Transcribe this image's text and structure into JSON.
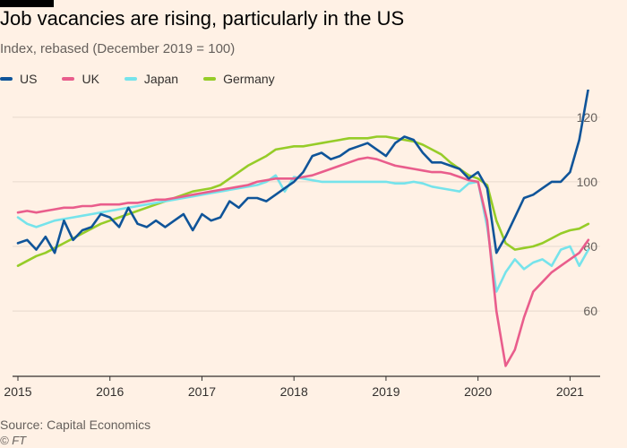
{
  "header": {
    "title": "Job vacancies are rising, particularly in the US",
    "subtitle": "Index, rebased (December 2019 = 100)"
  },
  "footer": {
    "source": "Source: Capital Economics",
    "credit": "© FT"
  },
  "chart_data": {
    "type": "line",
    "title": "Job vacancies are rising, particularly in the US",
    "subtitle": "Index, rebased (December 2019 = 100)",
    "xlabel": "",
    "ylabel": "",
    "x_ticks": [
      "2015",
      "2016",
      "2017",
      "2018",
      "2019",
      "2020",
      "2021"
    ],
    "xlim": [
      2015.0,
      2021.22
    ],
    "y_ticks": [
      "60",
      "80",
      "100",
      "120"
    ],
    "ylim": [
      42,
      128
    ],
    "y_axis_side": "right",
    "grid": "horizontal",
    "legend_position": "top-left",
    "x": [
      2015.0,
      2015.1,
      2015.2,
      2015.3,
      2015.4,
      2015.5,
      2015.6,
      2015.7,
      2015.8,
      2015.9,
      2016.0,
      2016.1,
      2016.2,
      2016.3,
      2016.4,
      2016.5,
      2016.6,
      2016.7,
      2016.8,
      2016.9,
      2017.0,
      2017.1,
      2017.2,
      2017.3,
      2017.4,
      2017.5,
      2017.6,
      2017.7,
      2017.8,
      2017.9,
      2018.0,
      2018.1,
      2018.2,
      2018.3,
      2018.4,
      2018.5,
      2018.6,
      2018.7,
      2018.8,
      2018.9,
      2019.0,
      2019.1,
      2019.2,
      2019.3,
      2019.4,
      2019.5,
      2019.6,
      2019.7,
      2019.8,
      2019.9,
      2020.0,
      2020.1,
      2020.2,
      2020.3,
      2020.4,
      2020.5,
      2020.6,
      2020.7,
      2020.8,
      2020.9,
      2021.0,
      2021.1,
      2021.2
    ],
    "series": [
      {
        "name": "US",
        "color": "#0f5499",
        "values": [
          81,
          82,
          79,
          83,
          78,
          88,
          82,
          85,
          86,
          90,
          89,
          86,
          92,
          87,
          86,
          88,
          86,
          88,
          90,
          85,
          90,
          88,
          89,
          94,
          92,
          95,
          95,
          94,
          96,
          98,
          100,
          103,
          108,
          109,
          107,
          108,
          110,
          111,
          112,
          110,
          108,
          112,
          114,
          113,
          109,
          106,
          106,
          105,
          104,
          101,
          103,
          98,
          78,
          83,
          89,
          95,
          96,
          98,
          100,
          100,
          103,
          113,
          129
        ]
      },
      {
        "name": "UK",
        "color": "#e95d8c",
        "values": [
          90.5,
          91,
          90.5,
          91,
          91.5,
          92,
          92,
          92.5,
          92.5,
          93,
          93,
          93,
          93.5,
          93.5,
          94,
          94.5,
          94.5,
          95,
          95.5,
          96,
          96.5,
          97,
          97.5,
          98,
          98.5,
          99,
          100,
          100.5,
          101,
          101,
          101,
          101.5,
          102,
          103,
          104,
          105,
          106,
          107,
          107.5,
          107,
          106,
          105,
          104.5,
          104,
          103.5,
          103,
          103,
          102.5,
          101.5,
          100.5,
          100,
          88,
          60,
          43,
          48,
          58,
          66,
          69,
          72,
          74,
          76,
          78,
          82
        ]
      },
      {
        "name": "Japan",
        "color": "#76e3eb",
        "values": [
          89,
          87,
          86,
          87,
          88,
          88.5,
          89,
          89.5,
          90,
          90.5,
          91,
          91.5,
          92,
          92.5,
          93,
          93.5,
          94,
          94.5,
          95,
          95.5,
          96,
          96.5,
          97,
          97.5,
          98,
          98.5,
          99,
          100,
          102,
          97,
          101.5,
          101,
          100.5,
          100,
          100,
          100,
          100,
          100,
          100,
          100,
          100,
          99.5,
          99.5,
          100,
          99.5,
          98.5,
          98,
          97.5,
          97,
          99.5,
          100,
          86,
          66,
          72,
          76,
          73,
          75,
          76,
          74,
          79,
          80,
          74,
          79
        ]
      },
      {
        "name": "Germany",
        "color": "#96cc28",
        "values": [
          74,
          75.5,
          77,
          78,
          79.5,
          81,
          82.5,
          84,
          85.5,
          87,
          88,
          89,
          90,
          91,
          92,
          93,
          94,
          95,
          96,
          97,
          97.5,
          98,
          99,
          101,
          103,
          105,
          106.5,
          108,
          110,
          110.5,
          111,
          111,
          111.5,
          112,
          112.5,
          113,
          113.5,
          113.5,
          113.5,
          114,
          114,
          113.5,
          113,
          112.5,
          111.5,
          110,
          108.5,
          106,
          104,
          102,
          101,
          99,
          88,
          81,
          79,
          79.5,
          80,
          81,
          82.5,
          84,
          85,
          85.5,
          87
        ]
      }
    ]
  }
}
